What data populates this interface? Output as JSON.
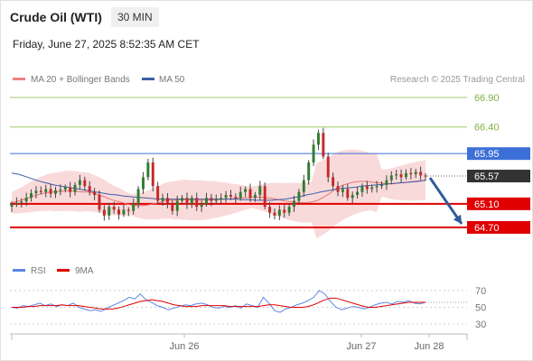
{
  "header": {
    "title": "Crude Oil (WTI)",
    "timeframe": "30 MIN",
    "datetime": "Friday, June 27, 2025 8:52:35 AM CET"
  },
  "legend": {
    "bollinger_label": "MA 20 + Bollinger Bands",
    "ma50_label": "MA 50",
    "credit": "Research © 2025 Trading Central",
    "rsi_label": "RSI",
    "rsi_ma_label": "9MA"
  },
  "colors": {
    "up": "#2f7d32",
    "down": "#c62828",
    "band_fill": "#f8d4d4",
    "ma20": "#e57373",
    "ma50": "#3b5ea8",
    "resistance": "#9ccc65",
    "pivot": "#3d6fd8",
    "support": "#e00000",
    "last": "#333333",
    "rsi": "#5b86e5",
    "rsi_ma": "#e00000"
  },
  "chart_data": [
    {
      "type": "candlestick",
      "title": "Crude Oil (WTI)",
      "ylim": [
        64.6,
        67.0
      ],
      "x_labels": [
        "Jun 26",
        "Jun 27",
        "Jun 28"
      ],
      "levels": [
        {
          "label": "66.90",
          "value": 66.9,
          "kind": "resistance"
        },
        {
          "label": "66.40",
          "value": 66.4,
          "kind": "resistance"
        },
        {
          "label": "65.95",
          "value": 65.95,
          "kind": "pivot"
        },
        {
          "label": "65.57",
          "value": 65.57,
          "kind": "last"
        },
        {
          "label": "65.10",
          "value": 65.1,
          "kind": "support"
        },
        {
          "label": "64.70",
          "value": 64.7,
          "kind": "support"
        }
      ],
      "projection": {
        "from": 65.57,
        "to": 64.7
      },
      "closes": [
        65.1,
        65.12,
        65.14,
        65.2,
        65.28,
        65.32,
        65.3,
        65.35,
        65.27,
        65.33,
        65.34,
        65.38,
        65.3,
        65.42,
        65.5,
        65.4,
        65.3,
        65.25,
        65.0,
        64.9,
        65.05,
        65.0,
        64.92,
        65.0,
        64.98,
        65.1,
        65.35,
        65.55,
        65.8,
        65.4,
        65.15,
        65.2,
        65.1,
        64.98,
        65.15,
        65.2,
        65.1,
        65.2,
        65.05,
        65.1,
        65.2,
        65.15,
        65.18,
        65.2,
        65.25,
        65.22,
        65.2,
        65.3,
        65.35,
        65.2,
        65.25,
        65.4,
        65.05,
        64.95,
        64.9,
        65.0,
        64.95,
        65.05,
        65.15,
        65.3,
        65.5,
        65.8,
        66.1,
        66.3,
        65.9,
        65.55,
        65.4,
        65.3,
        65.35,
        65.2,
        65.25,
        65.3,
        65.4,
        65.35,
        65.38,
        65.4,
        65.42,
        65.5,
        65.58,
        65.6,
        65.55,
        65.62,
        65.6,
        65.64,
        65.58,
        65.57
      ],
      "ma20": [
        65.12,
        65.14,
        65.17,
        65.2,
        65.23,
        65.26,
        65.28,
        65.3,
        65.3,
        65.31,
        65.32,
        65.32,
        65.31,
        65.3,
        65.3,
        65.28,
        65.25,
        65.22,
        65.18,
        65.15,
        65.13,
        65.1,
        65.08,
        65.07,
        65.07,
        65.08,
        65.1,
        65.12,
        65.15,
        65.16,
        65.16,
        65.17,
        65.17,
        65.16,
        65.16,
        65.16,
        65.16,
        65.17,
        65.17,
        65.18,
        65.18,
        65.19,
        65.2,
        65.2,
        65.21,
        65.21,
        65.21,
        65.2,
        65.19,
        65.17,
        65.15,
        65.14,
        65.13,
        65.12,
        65.12,
        65.13,
        65.15,
        65.2,
        65.25,
        65.32,
        65.38,
        65.42,
        65.45,
        65.47,
        65.48,
        65.48,
        65.47,
        65.46,
        65.45,
        65.44,
        65.44,
        65.45,
        65.46,
        65.47,
        65.48,
        65.49,
        65.5
      ],
      "ma50": [
        65.62,
        65.6,
        65.56,
        65.52,
        65.48,
        65.45,
        65.42,
        65.4,
        65.38,
        65.36,
        65.34,
        65.32,
        65.3,
        65.28,
        65.26,
        65.25,
        65.23,
        65.22,
        65.21,
        65.2,
        65.19,
        65.18,
        65.18,
        65.18,
        65.18,
        65.18,
        65.18,
        65.18,
        65.18,
        65.18,
        65.18,
        65.18,
        65.18,
        65.17,
        65.17,
        65.16,
        65.16,
        65.16,
        65.17,
        65.18,
        65.2,
        65.22,
        65.25,
        65.27,
        65.3,
        65.32,
        65.34,
        65.36,
        65.37,
        65.38,
        65.4,
        65.41,
        65.42,
        65.43,
        65.44,
        65.45,
        65.46,
        65.47,
        65.48,
        65.5
      ]
    },
    {
      "type": "line",
      "title": "RSI",
      "ylim": [
        25,
        75
      ],
      "y_ticks": [
        70,
        50,
        30
      ],
      "series": [
        {
          "name": "RSI",
          "values": [
            50,
            49,
            52,
            51,
            53,
            55,
            52,
            54,
            51,
            53,
            52,
            55,
            50,
            48,
            46,
            47,
            45,
            49,
            52,
            55,
            58,
            62,
            60,
            66,
            59,
            56,
            52,
            50,
            47,
            49,
            51,
            53,
            52,
            54,
            55,
            53,
            50,
            49,
            51,
            50,
            52,
            49,
            54,
            52,
            50,
            62,
            55,
            46,
            44,
            48,
            50,
            53,
            55,
            58,
            62,
            70,
            66,
            57,
            50,
            47,
            49,
            51,
            50,
            48,
            50,
            53,
            55,
            56,
            54,
            57,
            56,
            58,
            55,
            54,
            56
          ]
        },
        {
          "name": "9MA",
          "values": [
            50,
            50,
            50,
            51,
            51,
            52,
            52,
            52,
            52,
            53,
            52,
            52,
            52,
            51,
            50,
            49,
            48,
            48,
            48,
            49,
            51,
            53,
            55,
            57,
            58,
            59,
            58,
            57,
            55,
            53,
            52,
            51,
            51,
            51,
            52,
            52,
            52,
            52,
            52,
            51,
            51,
            51,
            51,
            51,
            51,
            52,
            53,
            53,
            52,
            51,
            50,
            50,
            50,
            51,
            53,
            56,
            59,
            61,
            61,
            59,
            57,
            55,
            53,
            51,
            50,
            50,
            51,
            52,
            53,
            54,
            55,
            56,
            56,
            56,
            56
          ]
        }
      ]
    }
  ]
}
